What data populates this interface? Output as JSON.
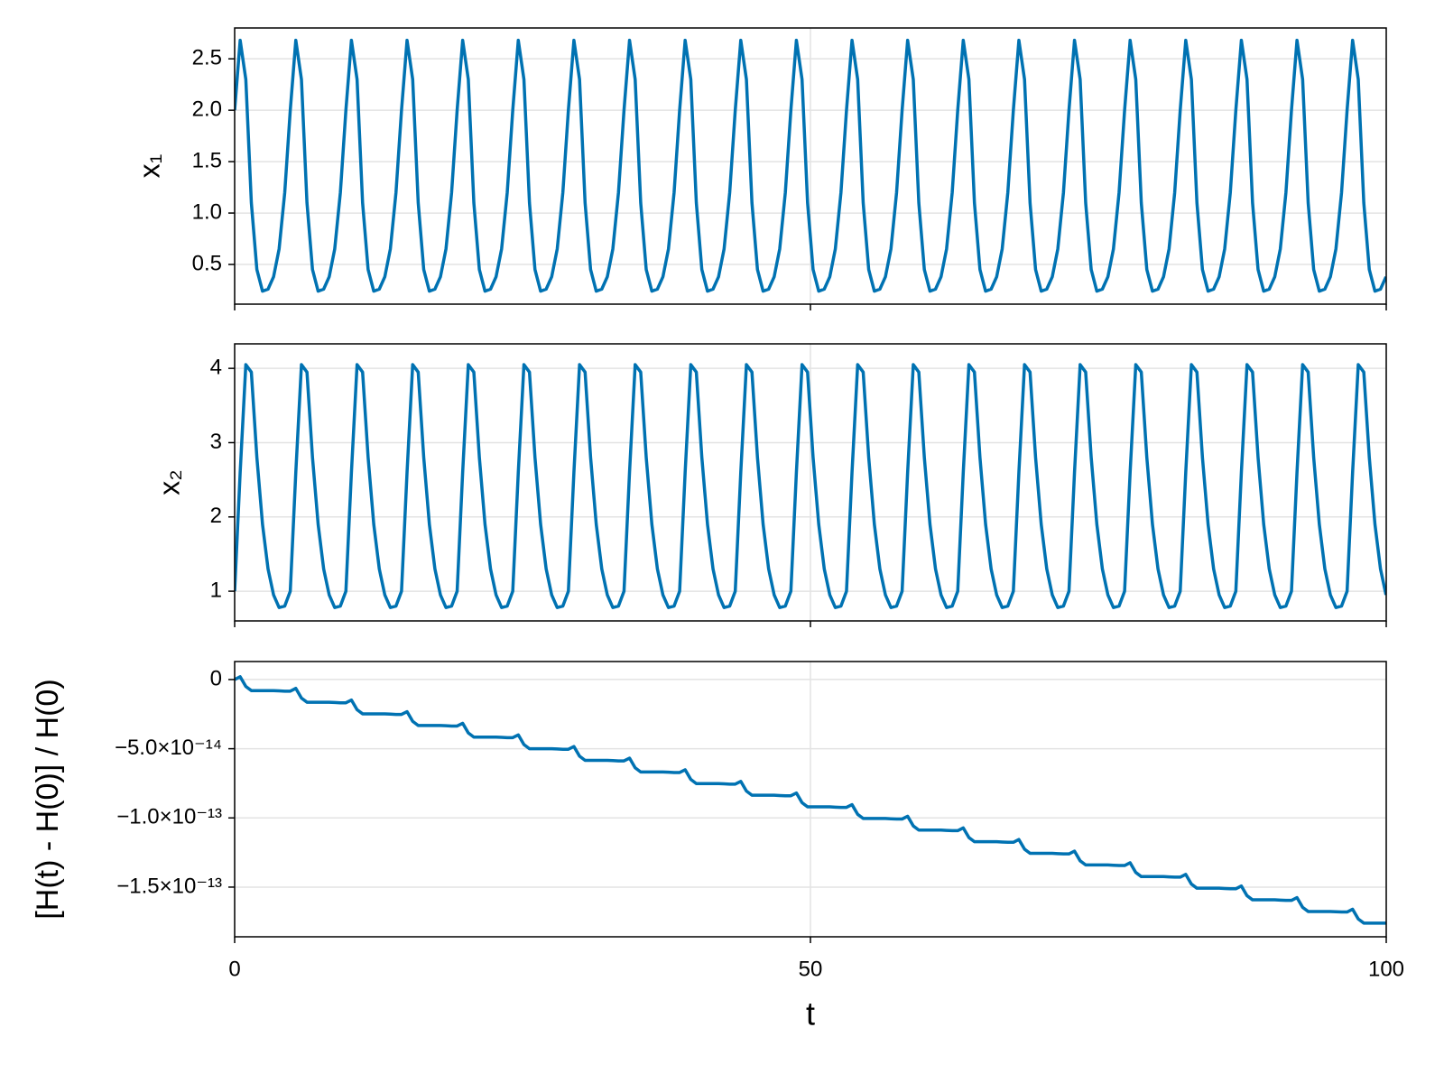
{
  "chart_data": [
    {
      "type": "line",
      "ylabel": "x₁",
      "color": "#0072b2",
      "grid": true,
      "ylim": [
        0.114,
        2.8
      ],
      "yticks": [
        0.5,
        {
          "value": 1,
          "label": "1.0"
        },
        1.5,
        {
          "value": 2,
          "label": "2.0"
        },
        2.5
      ],
      "values": [
        2.0,
        2.68,
        2.3,
        1.1,
        0.45,
        0.24,
        0.26,
        0.38,
        0.65,
        1.2,
        2.0,
        2.68,
        2.3,
        1.1,
        0.45,
        0.24,
        0.26,
        0.38,
        0.65,
        1.2,
        2.0,
        2.68,
        2.3,
        1.1,
        0.45,
        0.24,
        0.26,
        0.38,
        0.65,
        1.2,
        2.0,
        2.68,
        2.3,
        1.1,
        0.45,
        0.24,
        0.26,
        0.38,
        0.65,
        1.2,
        2.0,
        2.68,
        2.3,
        1.1,
        0.45,
        0.24,
        0.26,
        0.38,
        0.65,
        1.2,
        2.0,
        2.68,
        2.3,
        1.1,
        0.45,
        0.24,
        0.26,
        0.38,
        0.65,
        1.2,
        2.0,
        2.68,
        2.3,
        1.1,
        0.45,
        0.24,
        0.26,
        0.38,
        0.65,
        1.2,
        2.0,
        2.68,
        2.3,
        1.1,
        0.45,
        0.24,
        0.26,
        0.38,
        0.65,
        1.2,
        2.0,
        2.68,
        2.3,
        1.1,
        0.45,
        0.24,
        0.26,
        0.38,
        0.65,
        1.2,
        2.0,
        2.68,
        2.3,
        1.1,
        0.45,
        0.24,
        0.26,
        0.38,
        0.65,
        1.2,
        2.0,
        2.68,
        2.3,
        1.1,
        0.45,
        0.24,
        0.26,
        0.38,
        0.65,
        1.2,
        2.0,
        2.68,
        2.3,
        1.1,
        0.45,
        0.24,
        0.26,
        0.38,
        0.65,
        1.2,
        2.0,
        2.68,
        2.3,
        1.1,
        0.45,
        0.24,
        0.26,
        0.38,
        0.65,
        1.2,
        2.0,
        2.68,
        2.3,
        1.1,
        0.45,
        0.24,
        0.26,
        0.38,
        0.65,
        1.2,
        2.0,
        2.68,
        2.3,
        1.1,
        0.45,
        0.24,
        0.26,
        0.38,
        0.65,
        1.2,
        2.0,
        2.68,
        2.3,
        1.1,
        0.45,
        0.24,
        0.26,
        0.38,
        0.65,
        1.2,
        2.0,
        2.68,
        2.3,
        1.1,
        0.45,
        0.24,
        0.26,
        0.38,
        0.65,
        1.2,
        2.0,
        2.68,
        2.3,
        1.1,
        0.45,
        0.24,
        0.26,
        0.38,
        0.65,
        1.2,
        2.0,
        2.68,
        2.3,
        1.1,
        0.45,
        0.24,
        0.26,
        0.38,
        0.65,
        1.2,
        2.0,
        2.68,
        2.3,
        1.1,
        0.45,
        0.24,
        0.26,
        0.38,
        0.65,
        1.2,
        2.0,
        2.68,
        2.3,
        1.1,
        0.45,
        0.24,
        0.26,
        0.38
      ]
    },
    {
      "type": "line",
      "ylabel": "x₂",
      "color": "#0072b2",
      "grid": true,
      "ylim": [
        0.6,
        4.33
      ],
      "yticks": [
        1,
        2,
        3,
        4
      ],
      "values": [
        1.0,
        2.6,
        4.05,
        3.95,
        2.8,
        1.9,
        1.3,
        0.95,
        0.78,
        0.8,
        1.0,
        2.6,
        4.05,
        3.95,
        2.8,
        1.9,
        1.3,
        0.95,
        0.78,
        0.8,
        1.0,
        2.6,
        4.05,
        3.95,
        2.8,
        1.9,
        1.3,
        0.95,
        0.78,
        0.8,
        1.0,
        2.6,
        4.05,
        3.95,
        2.8,
        1.9,
        1.3,
        0.95,
        0.78,
        0.8,
        1.0,
        2.6,
        4.05,
        3.95,
        2.8,
        1.9,
        1.3,
        0.95,
        0.78,
        0.8,
        1.0,
        2.6,
        4.05,
        3.95,
        2.8,
        1.9,
        1.3,
        0.95,
        0.78,
        0.8,
        1.0,
        2.6,
        4.05,
        3.95,
        2.8,
        1.9,
        1.3,
        0.95,
        0.78,
        0.8,
        1.0,
        2.6,
        4.05,
        3.95,
        2.8,
        1.9,
        1.3,
        0.95,
        0.78,
        0.8,
        1.0,
        2.6,
        4.05,
        3.95,
        2.8,
        1.9,
        1.3,
        0.95,
        0.78,
        0.8,
        1.0,
        2.6,
        4.05,
        3.95,
        2.8,
        1.9,
        1.3,
        0.95,
        0.78,
        0.8,
        1.0,
        2.6,
        4.05,
        3.95,
        2.8,
        1.9,
        1.3,
        0.95,
        0.78,
        0.8,
        1.0,
        2.6,
        4.05,
        3.95,
        2.8,
        1.9,
        1.3,
        0.95,
        0.78,
        0.8,
        1.0,
        2.6,
        4.05,
        3.95,
        2.8,
        1.9,
        1.3,
        0.95,
        0.78,
        0.8,
        1.0,
        2.6,
        4.05,
        3.95,
        2.8,
        1.9,
        1.3,
        0.95,
        0.78,
        0.8,
        1.0,
        2.6,
        4.05,
        3.95,
        2.8,
        1.9,
        1.3,
        0.95,
        0.78,
        0.8,
        1.0,
        2.6,
        4.05,
        3.95,
        2.8,
        1.9,
        1.3,
        0.95,
        0.78,
        0.8,
        1.0,
        2.6,
        4.05,
        3.95,
        2.8,
        1.9,
        1.3,
        0.95,
        0.78,
        0.8,
        1.0,
        2.6,
        4.05,
        3.95,
        2.8,
        1.9,
        1.3,
        0.95,
        0.78,
        0.8,
        1.0,
        2.6,
        4.05,
        3.95,
        2.8,
        1.9,
        1.3,
        0.95,
        0.78,
        0.8,
        1.0,
        2.6,
        4.05,
        3.95,
        2.8,
        1.9,
        1.3,
        0.95,
        0.78,
        0.8,
        1.0,
        2.6,
        4.05,
        3.95,
        2.8,
        1.9,
        1.3,
        0.95
      ]
    },
    {
      "type": "line",
      "ylabel": "[H(t) - H(0)] / H(0)",
      "xlabel": "t",
      "color": "#0072b2",
      "grid": true,
      "xlim": [
        0,
        100
      ],
      "xticks": [
        0,
        50,
        100
      ],
      "ylim": [
        -1.859e-13,
        1.3e-14
      ],
      "yticks": [
        0,
        {
          "value": -5e-14,
          "label": "−5.0×10⁻¹⁴"
        },
        {
          "value": -1e-13,
          "label": "−1.0×10⁻¹³"
        },
        {
          "value": -1.5e-13,
          "label": "−1.5×10⁻¹³"
        }
      ],
      "x": [
        0,
        0.48,
        0.97,
        1.45,
        1.93,
        2.42,
        2.9,
        3.38,
        3.86,
        4.35,
        4.83,
        5.31,
        5.8,
        6.28,
        6.76,
        7.25,
        7.73,
        8.21,
        8.69,
        9.18,
        9.66,
        10.14,
        10.63,
        11.11,
        11.59,
        12.08,
        12.56,
        13.04,
        13.52,
        14.01,
        14.49,
        14.97,
        15.46,
        15.94,
        16.42,
        16.91,
        17.39,
        17.87,
        18.35,
        18.84,
        19.32,
        19.8,
        20.29,
        20.77,
        21.25,
        21.74,
        22.22,
        22.7,
        23.18,
        23.67,
        24.15,
        24.63,
        25.12,
        25.6,
        26.08,
        26.57,
        27.05,
        27.53,
        28.01,
        28.5,
        28.98,
        29.46,
        29.95,
        30.43,
        30.91,
        31.4,
        31.88,
        32.36,
        32.84,
        33.33,
        33.81,
        34.29,
        34.78,
        35.26,
        35.74,
        36.23,
        36.71,
        37.19,
        37.67,
        38.16,
        38.64,
        39.12,
        39.61,
        40.09,
        40.57,
        41.06,
        41.54,
        42.02,
        42.5,
        42.99,
        43.47,
        43.95,
        44.44,
        44.92,
        45.4,
        45.89,
        46.37,
        46.85,
        47.33,
        47.82,
        48.3,
        48.78,
        49.27,
        49.75,
        50.23,
        50.72,
        51.2,
        51.68,
        52.16,
        52.65,
        53.13,
        53.61,
        54.1,
        54.58,
        55.06,
        55.55,
        56.03,
        56.51,
        56.99,
        57.48,
        57.96,
        58.44,
        58.93,
        59.41,
        59.89,
        60.38,
        60.86,
        61.34,
        61.82,
        62.31,
        62.79,
        63.27,
        63.76,
        64.24,
        64.72,
        65.21,
        65.69,
        66.17,
        66.65,
        67.14,
        67.62,
        68.1,
        68.59,
        69.07,
        69.55,
        70.04,
        70.52,
        71,
        71.48,
        71.97,
        72.45,
        72.93,
        73.42,
        73.9,
        74.38,
        74.87,
        75.35,
        75.83,
        76.31,
        76.8,
        77.28,
        77.76,
        78.25,
        78.73,
        79.21,
        79.7,
        80.18,
        80.66,
        81.14,
        81.63,
        82.11,
        82.59,
        83.08,
        83.56,
        84.04,
        84.53,
        85.01,
        85.49,
        85.97,
        86.46,
        86.94,
        87.42,
        87.91,
        88.39,
        88.87,
        89.36,
        89.84,
        90.32,
        90.8,
        91.29,
        91.77,
        92.25,
        92.74,
        93.22,
        93.7,
        94.19,
        94.67,
        95.15,
        95.63,
        96.12,
        96.6,
        97.08,
        97.57,
        98.05,
        98.53,
        99.02,
        99.5,
        99.98
      ],
      "values": [
        0,
        2e-15,
        -5e-15,
        -8e-15,
        -8e-15,
        -8e-15,
        -8e-15,
        -8e-15,
        -8.2e-15,
        -8.4e-15,
        -8.4e-15,
        -6.4e-15,
        -1.34e-14,
        -1.64e-14,
        -1.64e-14,
        -1.64e-14,
        -1.64e-14,
        -1.64e-14,
        -1.66e-14,
        -1.68e-14,
        -1.68e-14,
        -1.48e-14,
        -2.18e-14,
        -2.48e-14,
        -2.48e-14,
        -2.48e-14,
        -2.48e-14,
        -2.48e-14,
        -2.5e-14,
        -2.52e-14,
        -2.52e-14,
        -2.32e-14,
        -3.02e-14,
        -3.32e-14,
        -3.32e-14,
        -3.32e-14,
        -3.32e-14,
        -3.32e-14,
        -3.34e-14,
        -3.36e-14,
        -3.36e-14,
        -3.16e-14,
        -3.86e-14,
        -4.16e-14,
        -4.16e-14,
        -4.16e-14,
        -4.16e-14,
        -4.16e-14,
        -4.18e-14,
        -4.2e-14,
        -4.2e-14,
        -4e-14,
        -4.7e-14,
        -5e-14,
        -5e-14,
        -5e-14,
        -5e-14,
        -5e-14,
        -5.02e-14,
        -5.04e-14,
        -5.04e-14,
        -4.84e-14,
        -5.54e-14,
        -5.84e-14,
        -5.84e-14,
        -5.84e-14,
        -5.84e-14,
        -5.84e-14,
        -5.86e-14,
        -5.88e-14,
        -5.88e-14,
        -5.68e-14,
        -6.38e-14,
        -6.68e-14,
        -6.68e-14,
        -6.68e-14,
        -6.68e-14,
        -6.68e-14,
        -6.7e-14,
        -6.72e-14,
        -6.72e-14,
        -6.52e-14,
        -7.22e-14,
        -7.52e-14,
        -7.52e-14,
        -7.52e-14,
        -7.52e-14,
        -7.52e-14,
        -7.54e-14,
        -7.56e-14,
        -7.56e-14,
        -7.36e-14,
        -8.06e-14,
        -8.36e-14,
        -8.36e-14,
        -8.36e-14,
        -8.36e-14,
        -8.36e-14,
        -8.38e-14,
        -8.4e-14,
        -8.4e-14,
        -8.2e-14,
        -8.9e-14,
        -9.2e-14,
        -9.2e-14,
        -9.2e-14,
        -9.2e-14,
        -9.2e-14,
        -9.22e-14,
        -9.24e-14,
        -9.24e-14,
        -9.04e-14,
        -9.74e-14,
        -1.004e-13,
        -1.004e-13,
        -1.004e-13,
        -1.004e-13,
        -1.004e-13,
        -1.006e-13,
        -1.008e-13,
        -1.008e-13,
        -9.88e-14,
        -1.058e-13,
        -1.088e-13,
        -1.088e-13,
        -1.088e-13,
        -1.088e-13,
        -1.088e-13,
        -1.09e-13,
        -1.092e-13,
        -1.092e-13,
        -1.072e-13,
        -1.142e-13,
        -1.172e-13,
        -1.172e-13,
        -1.172e-13,
        -1.172e-13,
        -1.172e-13,
        -1.174e-13,
        -1.176e-13,
        -1.176e-13,
        -1.156e-13,
        -1.226e-13,
        -1.256e-13,
        -1.256e-13,
        -1.256e-13,
        -1.256e-13,
        -1.256e-13,
        -1.258e-13,
        -1.26e-13,
        -1.26e-13,
        -1.24e-13,
        -1.31e-13,
        -1.34e-13,
        -1.34e-13,
        -1.34e-13,
        -1.34e-13,
        -1.34e-13,
        -1.342e-13,
        -1.344e-13,
        -1.344e-13,
        -1.324e-13,
        -1.394e-13,
        -1.424e-13,
        -1.424e-13,
        -1.424e-13,
        -1.424e-13,
        -1.424e-13,
        -1.426e-13,
        -1.428e-13,
        -1.428e-13,
        -1.408e-13,
        -1.478e-13,
        -1.508e-13,
        -1.508e-13,
        -1.508e-13,
        -1.508e-13,
        -1.508e-13,
        -1.51e-13,
        -1.512e-13,
        -1.512e-13,
        -1.492e-13,
        -1.562e-13,
        -1.592e-13,
        -1.592e-13,
        -1.592e-13,
        -1.592e-13,
        -1.592e-13,
        -1.594e-13,
        -1.596e-13,
        -1.596e-13,
        -1.576e-13,
        -1.646e-13,
        -1.676e-13,
        -1.676e-13,
        -1.676e-13,
        -1.676e-13,
        -1.676e-13,
        -1.678e-13,
        -1.68e-13,
        -1.68e-13,
        -1.66e-13,
        -1.73e-13,
        -1.76e-13,
        -1.76e-13,
        -1.76e-13,
        -1.76e-13,
        -1.76e-13
      ]
    }
  ]
}
